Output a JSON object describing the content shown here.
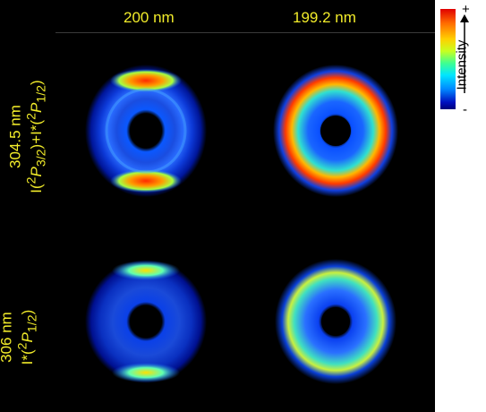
{
  "columns": [
    "200 nm",
    "199.2 nm"
  ],
  "rows": [
    {
      "wavelength": "304.5 nm",
      "state_html": "I(<sup>2</sup><i>P</i><sub>3/2</sub>)+I*(<sup>2</sup><i>P</i><sub>1/2</sub>)"
    },
    {
      "wavelength": "306 nm",
      "state_html": "I*(<sup>2</sup><i>P</i><sub>1/2</sub>)"
    }
  ],
  "colorbar": {
    "top": "+",
    "bottom": "-",
    "label": "Intensity"
  },
  "colors": {
    "label_yellow": "#f2ec2a",
    "background": "#000000"
  },
  "icons": [
    "intensity-arrow-icon"
  ]
}
